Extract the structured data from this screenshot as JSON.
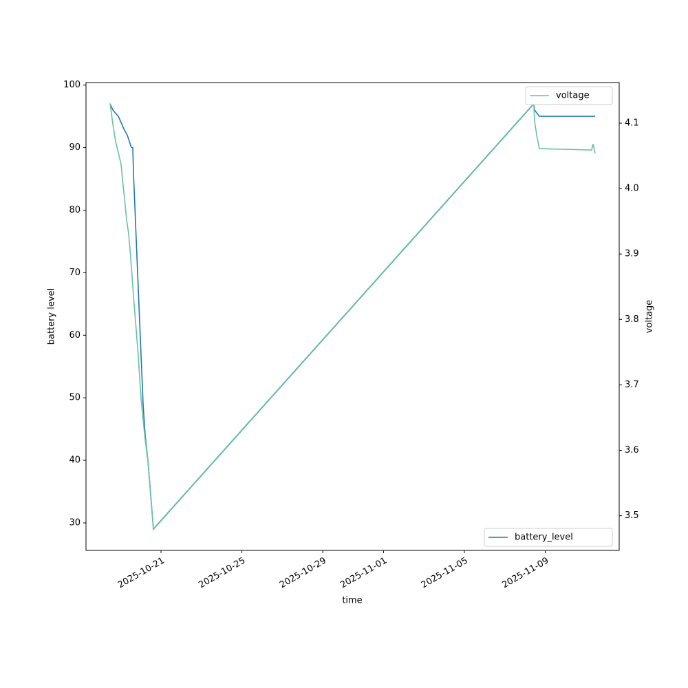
{
  "chart_data": {
    "type": "line",
    "xlabel": "time",
    "ylabel": "battery level",
    "y2label": "voltage",
    "xlim": [
      "2025-10-17T07:00",
      "2025-11-12T15:42"
    ],
    "xticks": [
      "2025-10-21",
      "2025-10-25",
      "2025-10-29",
      "2025-11-01",
      "2025-11-05",
      "2025-11-09"
    ],
    "ylim": [
      25.6,
      100.4
    ],
    "yticks": [
      30,
      40,
      50,
      60,
      70,
      80,
      90,
      100
    ],
    "y2lim": [
      3.447,
      4.162
    ],
    "y2ticks": [
      3.5,
      3.6,
      3.7,
      3.8,
      3.9,
      {
        "value": 4,
        "label": "4.0"
      },
      4.1
    ],
    "series": [
      {
        "name": "battery_level",
        "color": "#1f77b4",
        "axis": "y",
        "legend_loc": "lower right",
        "x": [
          "2025-10-18T11:36",
          "2025-10-18T14:54",
          "2025-10-18T21:24",
          "2025-10-19T00:42",
          "2025-10-19T03:54",
          "2025-10-19T08:00",
          "2025-10-19T10:24",
          "2025-10-19T12:54",
          "2025-10-19T14:30",
          "2025-10-19T15:18",
          "2025-10-19T20:12",
          "2025-10-20T02:48",
          "2025-10-20T05:12",
          "2025-10-20T08:30",
          "2025-10-20T15:00",
          "2025-11-08T10:24",
          "2025-11-08T11:18",
          "2025-11-08T17:00",
          "2025-11-11T11:06"
        ],
        "values": [
          97,
          96,
          95,
          94,
          93,
          92,
          91,
          90,
          90,
          86,
          70,
          49,
          44,
          40,
          29,
          97,
          96,
          95,
          95
        ]
      },
      {
        "name": "voltage",
        "color": "#66c2a5",
        "axis": "y2",
        "legend_loc": "upper right",
        "x": [
          "2025-10-18T11:36",
          "2025-10-18T14:54",
          "2025-10-18T18:06",
          "2025-10-18T21:24",
          "2025-10-19T00:42",
          "2025-10-19T02:18",
          "2025-10-19T05:36",
          "2025-10-19T07:12",
          "2025-10-19T09:36",
          "2025-10-19T12:06",
          "2025-10-19T15:18",
          "2025-10-19T18:36",
          "2025-10-19T21:06",
          "2025-10-20T00:18",
          "2025-10-20T02:48",
          "2025-10-20T05:12",
          "2025-10-20T08:30",
          "2025-10-20T11:48",
          "2025-10-20T15:00",
          "2025-11-08T10:24",
          "2025-11-08T11:18",
          "2025-11-08T13:42",
          "2025-11-08T17:00",
          "2025-11-11T07:00",
          "2025-11-11T08:42",
          "2025-11-11T11:06"
        ],
        "values": [
          4.13,
          4.098,
          4.072,
          4.055,
          4.036,
          4.015,
          3.973,
          3.952,
          3.931,
          3.894,
          3.836,
          3.784,
          3.742,
          3.679,
          3.647,
          3.616,
          3.584,
          3.532,
          3.48,
          4.13,
          4.103,
          4.082,
          4.061,
          4.059,
          4.068,
          4.054
        ]
      }
    ]
  }
}
